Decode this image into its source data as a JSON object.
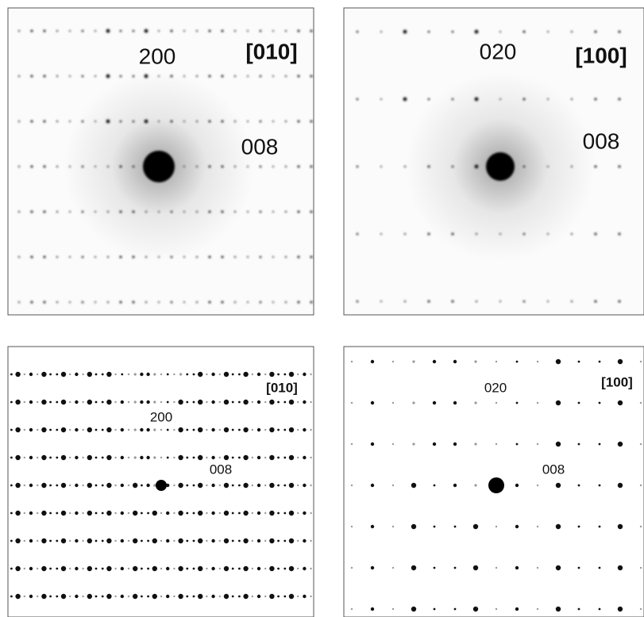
{
  "panels": [
    {
      "labels": [
        "200",
        "[010]",
        "008"
      ]
    },
    {
      "labels": [
        "020",
        "[100]",
        "008"
      ]
    },
    {
      "labels": [
        "[010]",
        "200",
        "008"
      ]
    },
    {
      "labels": [
        "020",
        "[100]",
        "008"
      ]
    }
  ]
}
